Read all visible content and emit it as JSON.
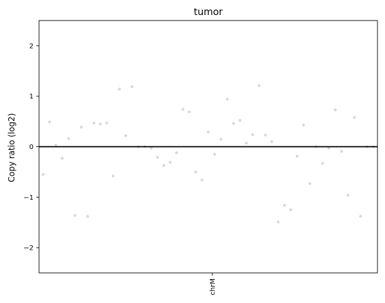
{
  "chart_data": {
    "type": "scatter",
    "title": "tumor",
    "xlabel": "",
    "ylabel": "Copy ratio (log2)",
    "ylim": [
      -2.5,
      2.5
    ],
    "yticks": [
      -2,
      -1,
      0,
      1,
      2
    ],
    "xtick_labels": [
      "chrM"
    ],
    "reference_line_y": 0,
    "grid": false,
    "legend": "none",
    "point_color": "#d9d9d9",
    "line_color": "#000000",
    "points": {
      "x": [
        1,
        2,
        3,
        4,
        5,
        6,
        7,
        8,
        9,
        10,
        11,
        12,
        13,
        14,
        15,
        16,
        17,
        18,
        19,
        20,
        21,
        22,
        23,
        24,
        25,
        26,
        27,
        28,
        29,
        30,
        31,
        32,
        33,
        34,
        35,
        36,
        37,
        38,
        39,
        40,
        41,
        42,
        43,
        44,
        45,
        46,
        47,
        48,
        49,
        50,
        51,
        52,
        53
      ],
      "y": [
        -0.55,
        0.49,
        0.03,
        -0.23,
        0.16,
        -1.36,
        0.39,
        -1.38,
        0.47,
        0.45,
        0.47,
        -0.58,
        1.14,
        0.22,
        1.19,
        0.0,
        0.0,
        -0.03,
        -0.21,
        -0.37,
        -0.31,
        -0.12,
        0.74,
        0.69,
        -0.5,
        -0.66,
        0.29,
        -0.15,
        0.15,
        0.94,
        0.46,
        0.52,
        0.07,
        0.24,
        1.21,
        0.23,
        0.1,
        -1.49,
        -1.16,
        -1.25,
        -0.19,
        0.43,
        -0.73,
        0.0,
        -0.33,
        -0.03,
        0.73,
        -0.09,
        -0.96,
        0.58,
        -1.38,
        0.0,
        0.0
      ]
    }
  }
}
